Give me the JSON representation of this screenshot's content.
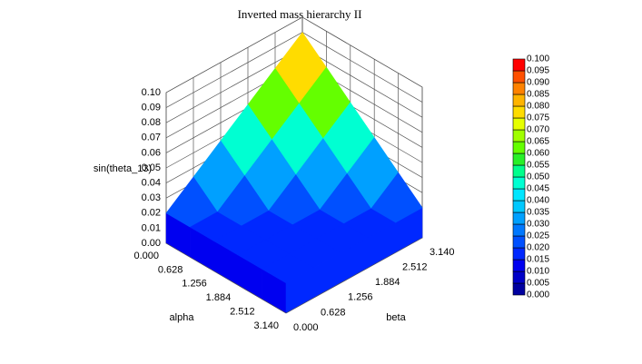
{
  "chart_data": {
    "type": "surface3d",
    "title": "Inverted mass hierarchy II",
    "zlabel": "sin(theta_13)",
    "xlabel": "alpha",
    "ylabel": "beta",
    "x": [
      0,
      0.628,
      1.256,
      1.884,
      2.512,
      3.14
    ],
    "y": [
      0,
      0.628,
      1.256,
      1.884,
      2.512,
      3.14
    ],
    "z": [
      [
        0.02,
        0.034,
        0.048,
        0.062,
        0.076,
        0.09
      ],
      [
        0.02,
        0.02,
        0.034,
        0.048,
        0.062,
        0.076
      ],
      [
        0.02,
        0.02,
        0.02,
        0.034,
        0.048,
        0.062
      ],
      [
        0.02,
        0.02,
        0.02,
        0.02,
        0.034,
        0.048
      ],
      [
        0.02,
        0.02,
        0.02,
        0.02,
        0.02,
        0.034
      ],
      [
        0.02,
        0.02,
        0.02,
        0.02,
        0.02,
        0.02
      ]
    ],
    "xlim": [
      0,
      3.14
    ],
    "ylim": [
      0,
      3.14
    ],
    "zlim": [
      0,
      0.1
    ],
    "xticks": [
      {
        "value": 0,
        "label": "0.000"
      },
      {
        "value": 0.628,
        "label": "0.628"
      },
      {
        "value": 1.256,
        "label": "1.256"
      },
      {
        "value": 1.884,
        "label": "1.884"
      },
      {
        "value": 2.512,
        "label": "2.512"
      },
      {
        "value": 3.14,
        "label": "3.140"
      }
    ],
    "yticks": [
      {
        "value": 0,
        "label": "0.000"
      },
      {
        "value": 0.628,
        "label": "0.628"
      },
      {
        "value": 1.256,
        "label": "1.256"
      },
      {
        "value": 1.884,
        "label": "1.884"
      },
      {
        "value": 2.512,
        "label": "2.512"
      },
      {
        "value": 3.14,
        "label": "3.140"
      }
    ],
    "zticks": [
      {
        "value": 0,
        "label": "0.00"
      },
      {
        "value": 0.01,
        "label": "0.01"
      },
      {
        "value": 0.02,
        "label": "0.02"
      },
      {
        "value": 0.03,
        "label": "0.03"
      },
      {
        "value": 0.04,
        "label": "0.04"
      },
      {
        "value": 0.05,
        "label": "0.05"
      },
      {
        "value": 0.06,
        "label": "0.06"
      },
      {
        "value": 0.07,
        "label": "0.07"
      },
      {
        "value": 0.08,
        "label": "0.08"
      },
      {
        "value": 0.09,
        "label": "0.09"
      },
      {
        "value": 0.1,
        "label": "0.10"
      }
    ],
    "colormap": [
      "#0000a0",
      "#0000c8",
      "#0000f0",
      "#0028ff",
      "#0050ff",
      "#0078ff",
      "#00a0ff",
      "#00c8ff",
      "#00e6ff",
      "#00ffd2",
      "#00ff8c",
      "#28f028",
      "#64ff00",
      "#a0ff00",
      "#e6ff00",
      "#ffdc00",
      "#ffb400",
      "#ff8200",
      "#ff5000",
      "#ff0000"
    ],
    "colorbar_ticks": [
      {
        "value": 0,
        "label": "0.000"
      },
      {
        "value": 0.005,
        "label": "0.005"
      },
      {
        "value": 0.01,
        "label": "0.010"
      },
      {
        "value": 0.015,
        "label": "0.015"
      },
      {
        "value": 0.02,
        "label": "0.020"
      },
      {
        "value": 0.025,
        "label": "0.025"
      },
      {
        "value": 0.03,
        "label": "0.030"
      },
      {
        "value": 0.035,
        "label": "0.035"
      },
      {
        "value": 0.04,
        "label": "0.040"
      },
      {
        "value": 0.045,
        "label": "0.045"
      },
      {
        "value": 0.05,
        "label": "0.050"
      },
      {
        "value": 0.055,
        "label": "0.055"
      },
      {
        "value": 0.06,
        "label": "0.060"
      },
      {
        "value": 0.065,
        "label": "0.065"
      },
      {
        "value": 0.07,
        "label": "0.070"
      },
      {
        "value": 0.075,
        "label": "0.075"
      },
      {
        "value": 0.08,
        "label": "0.080"
      },
      {
        "value": 0.085,
        "label": "0.085"
      },
      {
        "value": 0.09,
        "label": "0.090"
      },
      {
        "value": 0.095,
        "label": "0.095"
      },
      {
        "value": 0.1,
        "label": "0.100"
      }
    ]
  }
}
